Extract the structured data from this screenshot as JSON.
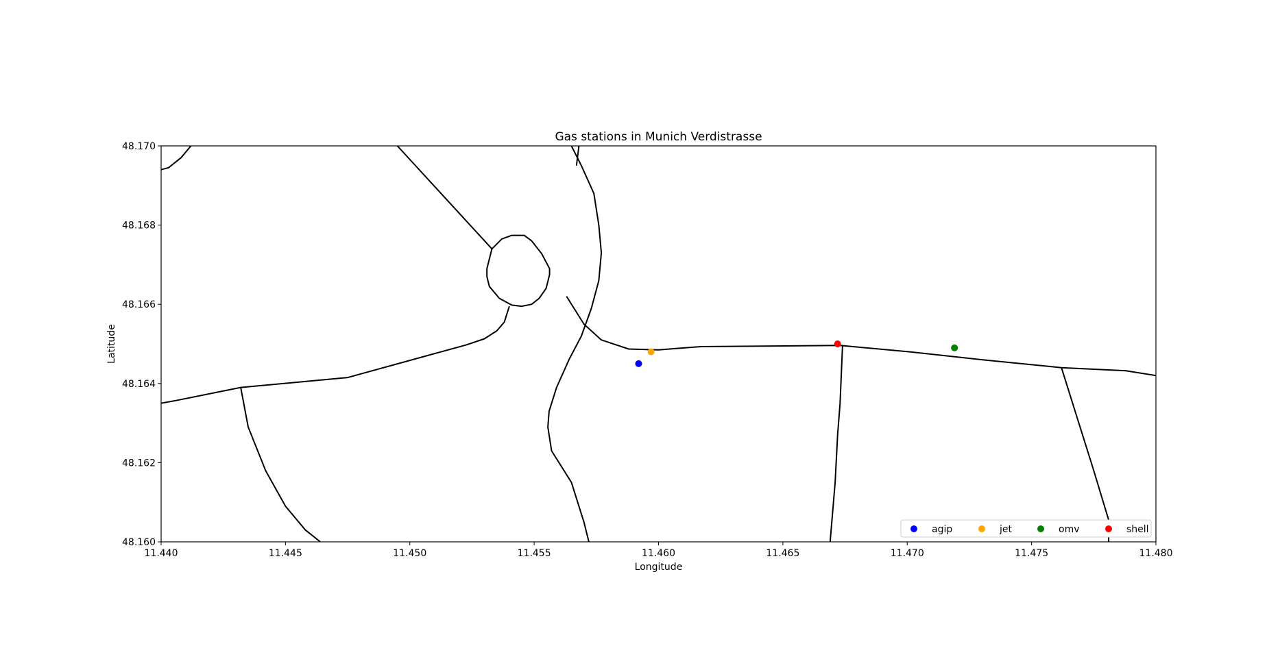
{
  "chart_data": {
    "type": "scatter",
    "title": "Gas stations in Munich Verdistrasse",
    "xlabel": "Longitude",
    "ylabel": "Latitude",
    "xlim": [
      11.44,
      11.48
    ],
    "ylim": [
      48.16,
      48.17
    ],
    "x_ticks": [
      11.44,
      11.445,
      11.45,
      11.455,
      11.46,
      11.465,
      11.47,
      11.475,
      11.48
    ],
    "x_tick_labels": [
      "11.440",
      "11.445",
      "11.450",
      "11.455",
      "11.460",
      "11.465",
      "11.470",
      "11.475",
      "11.480"
    ],
    "y_ticks": [
      48.16,
      48.162,
      48.164,
      48.166,
      48.168,
      48.17
    ],
    "y_tick_labels": [
      "48.160",
      "48.162",
      "48.164",
      "48.166",
      "48.168",
      "48.170"
    ],
    "grid": false,
    "legend_position": "lower-right",
    "series": [
      {
        "name": "agip",
        "color": "#0000ff",
        "points": [
          [
            11.4592,
            48.1645
          ]
        ]
      },
      {
        "name": "jet",
        "color": "#ffa500",
        "points": [
          [
            11.4597,
            48.1648
          ]
        ]
      },
      {
        "name": "omv",
        "color": "#008000",
        "points": [
          [
            11.4719,
            48.1649
          ]
        ]
      },
      {
        "name": "shell",
        "color": "#ff0000",
        "points": [
          [
            11.4672,
            48.165
          ]
        ]
      }
    ],
    "roads": [
      [
        [
          11.44,
          48.1694
        ],
        [
          11.4403,
          48.16945
        ],
        [
          11.4408,
          48.1697
        ],
        [
          11.4412,
          48.17
        ]
      ],
      [
        [
          11.4495,
          48.17
        ],
        [
          11.4533,
          48.1674
        ]
      ],
      [
        [
          11.4563,
          48.1662
        ],
        [
          11.457,
          48.1655
        ],
        [
          11.4577,
          48.1651
        ],
        [
          11.4588,
          48.16487
        ],
        [
          11.46,
          48.16485
        ],
        [
          11.4617,
          48.16493
        ],
        [
          11.4673,
          48.16496
        ],
        [
          11.4701,
          48.1648
        ],
        [
          11.473,
          48.1646
        ],
        [
          11.4762,
          48.1644
        ],
        [
          11.4788,
          48.16432
        ],
        [
          11.48,
          48.1642
        ]
      ],
      [
        [
          11.4565,
          48.17
        ],
        [
          11.4569,
          48.1695
        ],
        [
          11.4574,
          48.1688
        ],
        [
          11.4576,
          48.168
        ],
        [
          11.4577,
          48.1673
        ],
        [
          11.4576,
          48.1666
        ],
        [
          11.4573,
          48.1659
        ],
        [
          11.4569,
          48.1652
        ],
        [
          11.4564,
          48.1646
        ],
        [
          11.4559,
          48.1639
        ],
        [
          11.4556,
          48.1633
        ],
        [
          11.45555,
          48.1629
        ],
        [
          11.4557,
          48.1623
        ],
        [
          11.4561,
          48.1619
        ],
        [
          11.4565,
          48.1615
        ],
        [
          11.4568,
          48.1609
        ],
        [
          11.457,
          48.1605
        ],
        [
          11.4572,
          48.16
        ]
      ],
      [
        [
          11.4568,
          48.17
        ],
        [
          11.4567,
          48.1695
        ]
      ],
      [
        [
          11.454,
          48.16595
        ],
        [
          11.4538,
          48.16555
        ],
        [
          11.4535,
          48.16533
        ],
        [
          11.453,
          48.16513
        ],
        [
          11.4523,
          48.16498
        ],
        [
          11.4505,
          48.16467
        ],
        [
          11.4475,
          48.16415
        ],
        [
          11.4432,
          48.1639
        ],
        [
          11.4406,
          48.16357
        ],
        [
          11.44,
          48.1635
        ]
      ],
      [
        [
          11.4432,
          48.1639
        ],
        [
          11.4435,
          48.1629
        ],
        [
          11.4442,
          48.1618
        ],
        [
          11.445,
          48.1609
        ],
        [
          11.4458,
          48.1603
        ],
        [
          11.4464,
          48.16
        ]
      ],
      [
        [
          11.4674,
          48.16496
        ],
        [
          11.4673,
          48.1635
        ],
        [
          11.4672,
          48.1627
        ],
        [
          11.4671,
          48.1615
        ],
        [
          11.4669,
          48.16
        ]
      ],
      [
        [
          11.4762,
          48.1644
        ],
        [
          11.4768,
          48.1632
        ],
        [
          11.4775,
          48.1618
        ],
        [
          11.4781,
          48.16055
        ],
        [
          11.4781,
          48.16
        ]
      ]
    ],
    "roundabout": [
      [
        11.4533,
        48.1674
      ],
      [
        11.4537,
        48.16765
      ],
      [
        11.4541,
        48.16774
      ],
      [
        11.4546,
        48.16774
      ],
      [
        11.4549,
        48.1676
      ],
      [
        11.4553,
        48.16728
      ],
      [
        11.45562,
        48.1669
      ],
      [
        11.45562,
        48.16675
      ],
      [
        11.45548,
        48.1664
      ],
      [
        11.4552,
        48.16615
      ],
      [
        11.4549,
        48.166
      ],
      [
        11.4545,
        48.16595
      ],
      [
        11.4541,
        48.16598
      ],
      [
        11.4536,
        48.16615
      ],
      [
        11.4532,
        48.16645
      ],
      [
        11.4531,
        48.1667
      ],
      [
        11.4531,
        48.1669
      ],
      [
        11.4533,
        48.1674
      ]
    ]
  }
}
